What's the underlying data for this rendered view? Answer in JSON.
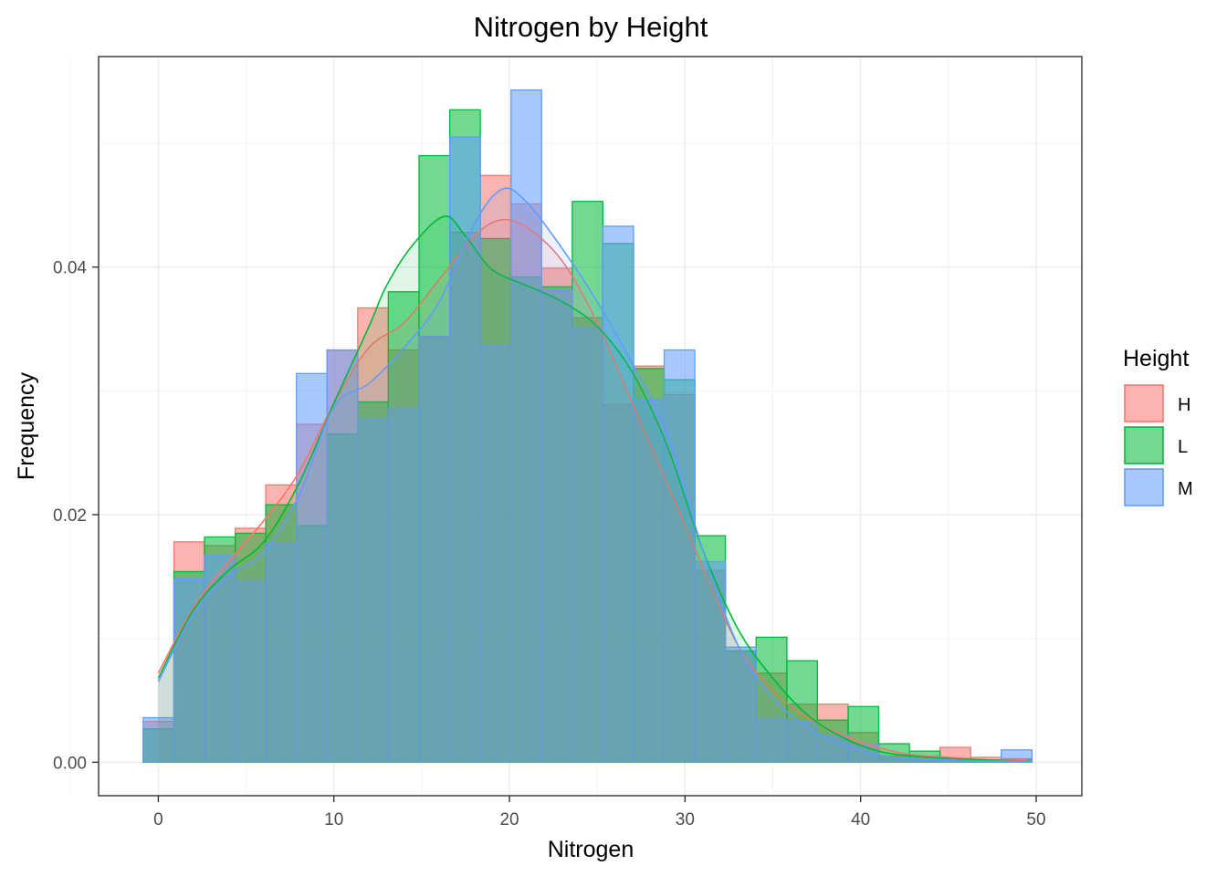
{
  "chart_data": {
    "type": "histogram",
    "title": "Nitrogen by Height",
    "xlabel": "Nitrogen",
    "ylabel": "Frequency",
    "xlim": [
      -3.4,
      52.6
    ],
    "ylim": [
      -0.0027,
      0.057
    ],
    "x_ticks": [
      0,
      10,
      20,
      30,
      40,
      50
    ],
    "x_tick_labels": [
      "0",
      "10",
      "20",
      "30",
      "40",
      "50"
    ],
    "y_ticks": [
      0.0,
      0.02,
      0.04
    ],
    "y_tick_labels": [
      "0.00",
      "0.02",
      "0.04"
    ],
    "grid": true,
    "legend": {
      "title": "Height",
      "position": "right"
    },
    "bin_edges": [
      -0.86,
      0.89,
      2.63,
      4.38,
      6.12,
      7.87,
      9.61,
      11.36,
      13.1,
      14.85,
      16.6,
      18.34,
      20.09,
      21.83,
      23.58,
      25.32,
      27.07,
      28.81,
      30.56,
      32.3,
      34.05,
      35.8,
      37.54,
      39.29,
      41.03,
      42.78,
      44.52,
      46.27,
      48.01,
      49.76
    ],
    "series": [
      {
        "name": "H",
        "color": "#F8766D",
        "values": [
          0.0033,
          0.0178,
          0.0175,
          0.0189,
          0.0224,
          0.0273,
          0.0333,
          0.0367,
          0.0333,
          0.0343,
          0.0428,
          0.0474,
          0.0451,
          0.0399,
          0.0359,
          0.0289,
          0.032,
          0.0297,
          0.0155,
          0.009,
          0.0072,
          0.0047,
          0.0047,
          0.0024,
          0.0005,
          0.0005,
          0.0012,
          0.0004,
          0.0003
        ],
        "density_x": [
          0,
          2,
          4,
          6,
          8,
          10,
          12,
          14,
          16,
          18,
          19.5,
          21,
          23,
          25,
          27,
          29,
          31,
          33,
          35,
          37,
          39,
          41,
          43,
          45,
          47,
          49.5
        ],
        "density_y": [
          0.0072,
          0.0125,
          0.0162,
          0.0195,
          0.0234,
          0.029,
          0.0335,
          0.0355,
          0.039,
          0.0425,
          0.0438,
          0.0432,
          0.0405,
          0.0355,
          0.029,
          0.0225,
          0.0158,
          0.0095,
          0.0058,
          0.0036,
          0.0022,
          0.0012,
          0.0006,
          0.0004,
          0.0002,
          0.0002
        ]
      },
      {
        "name": "L",
        "color": "#00BA38",
        "values": [
          0.0027,
          0.0154,
          0.0182,
          0.0185,
          0.0208,
          0.0191,
          0.0265,
          0.0291,
          0.038,
          0.049,
          0.0527,
          0.0423,
          0.0392,
          0.0384,
          0.0453,
          0.0419,
          0.0318,
          0.0309,
          0.0183,
          0.009,
          0.0101,
          0.0082,
          0.0034,
          0.0045,
          0.0015,
          0.0009,
          0.0003,
          0.0002,
          0.0002
        ],
        "density_x": [
          0,
          2,
          4,
          6,
          8,
          10,
          12,
          13,
          14.5,
          16.3,
          17.5,
          19,
          21,
          23,
          25,
          27,
          29,
          31,
          33,
          35,
          37,
          39,
          41,
          43,
          45,
          47,
          49.5
        ],
        "density_y": [
          0.0068,
          0.0123,
          0.0155,
          0.0178,
          0.0225,
          0.029,
          0.0352,
          0.0385,
          0.0418,
          0.0441,
          0.0425,
          0.0398,
          0.0385,
          0.0372,
          0.0352,
          0.0315,
          0.0255,
          0.0172,
          0.0108,
          0.0068,
          0.0038,
          0.002,
          0.0009,
          0.0005,
          0.0003,
          0.0002,
          0.0001
        ]
      },
      {
        "name": "M",
        "color": "#619CFF",
        "values": [
          0.0036,
          0.0148,
          0.0167,
          0.0146,
          0.0177,
          0.0314,
          0.0333,
          0.0277,
          0.0286,
          0.0344,
          0.0505,
          0.0337,
          0.0543,
          0.0381,
          0.0351,
          0.0433,
          0.0293,
          0.0333,
          0.0162,
          0.0093,
          0.0035,
          0.0033,
          0.0022,
          0.0014,
          0.0003,
          0.0002,
          0.0002,
          0.0002,
          0.001
        ],
        "density_x": [
          0,
          2,
          4,
          6,
          8,
          10,
          12,
          14,
          16,
          18,
          19.6,
          21,
          23,
          25,
          27,
          29,
          31,
          33,
          35,
          37,
          39,
          41,
          43,
          45,
          47,
          49.5
        ],
        "density_y": [
          0.0065,
          0.012,
          0.015,
          0.017,
          0.0215,
          0.0287,
          0.0306,
          0.0335,
          0.0372,
          0.0435,
          0.0463,
          0.0452,
          0.0415,
          0.0372,
          0.0322,
          0.0265,
          0.0172,
          0.0095,
          0.0052,
          0.0028,
          0.0014,
          0.0006,
          0.0003,
          0.0002,
          0.0001,
          0.0001
        ]
      }
    ]
  }
}
